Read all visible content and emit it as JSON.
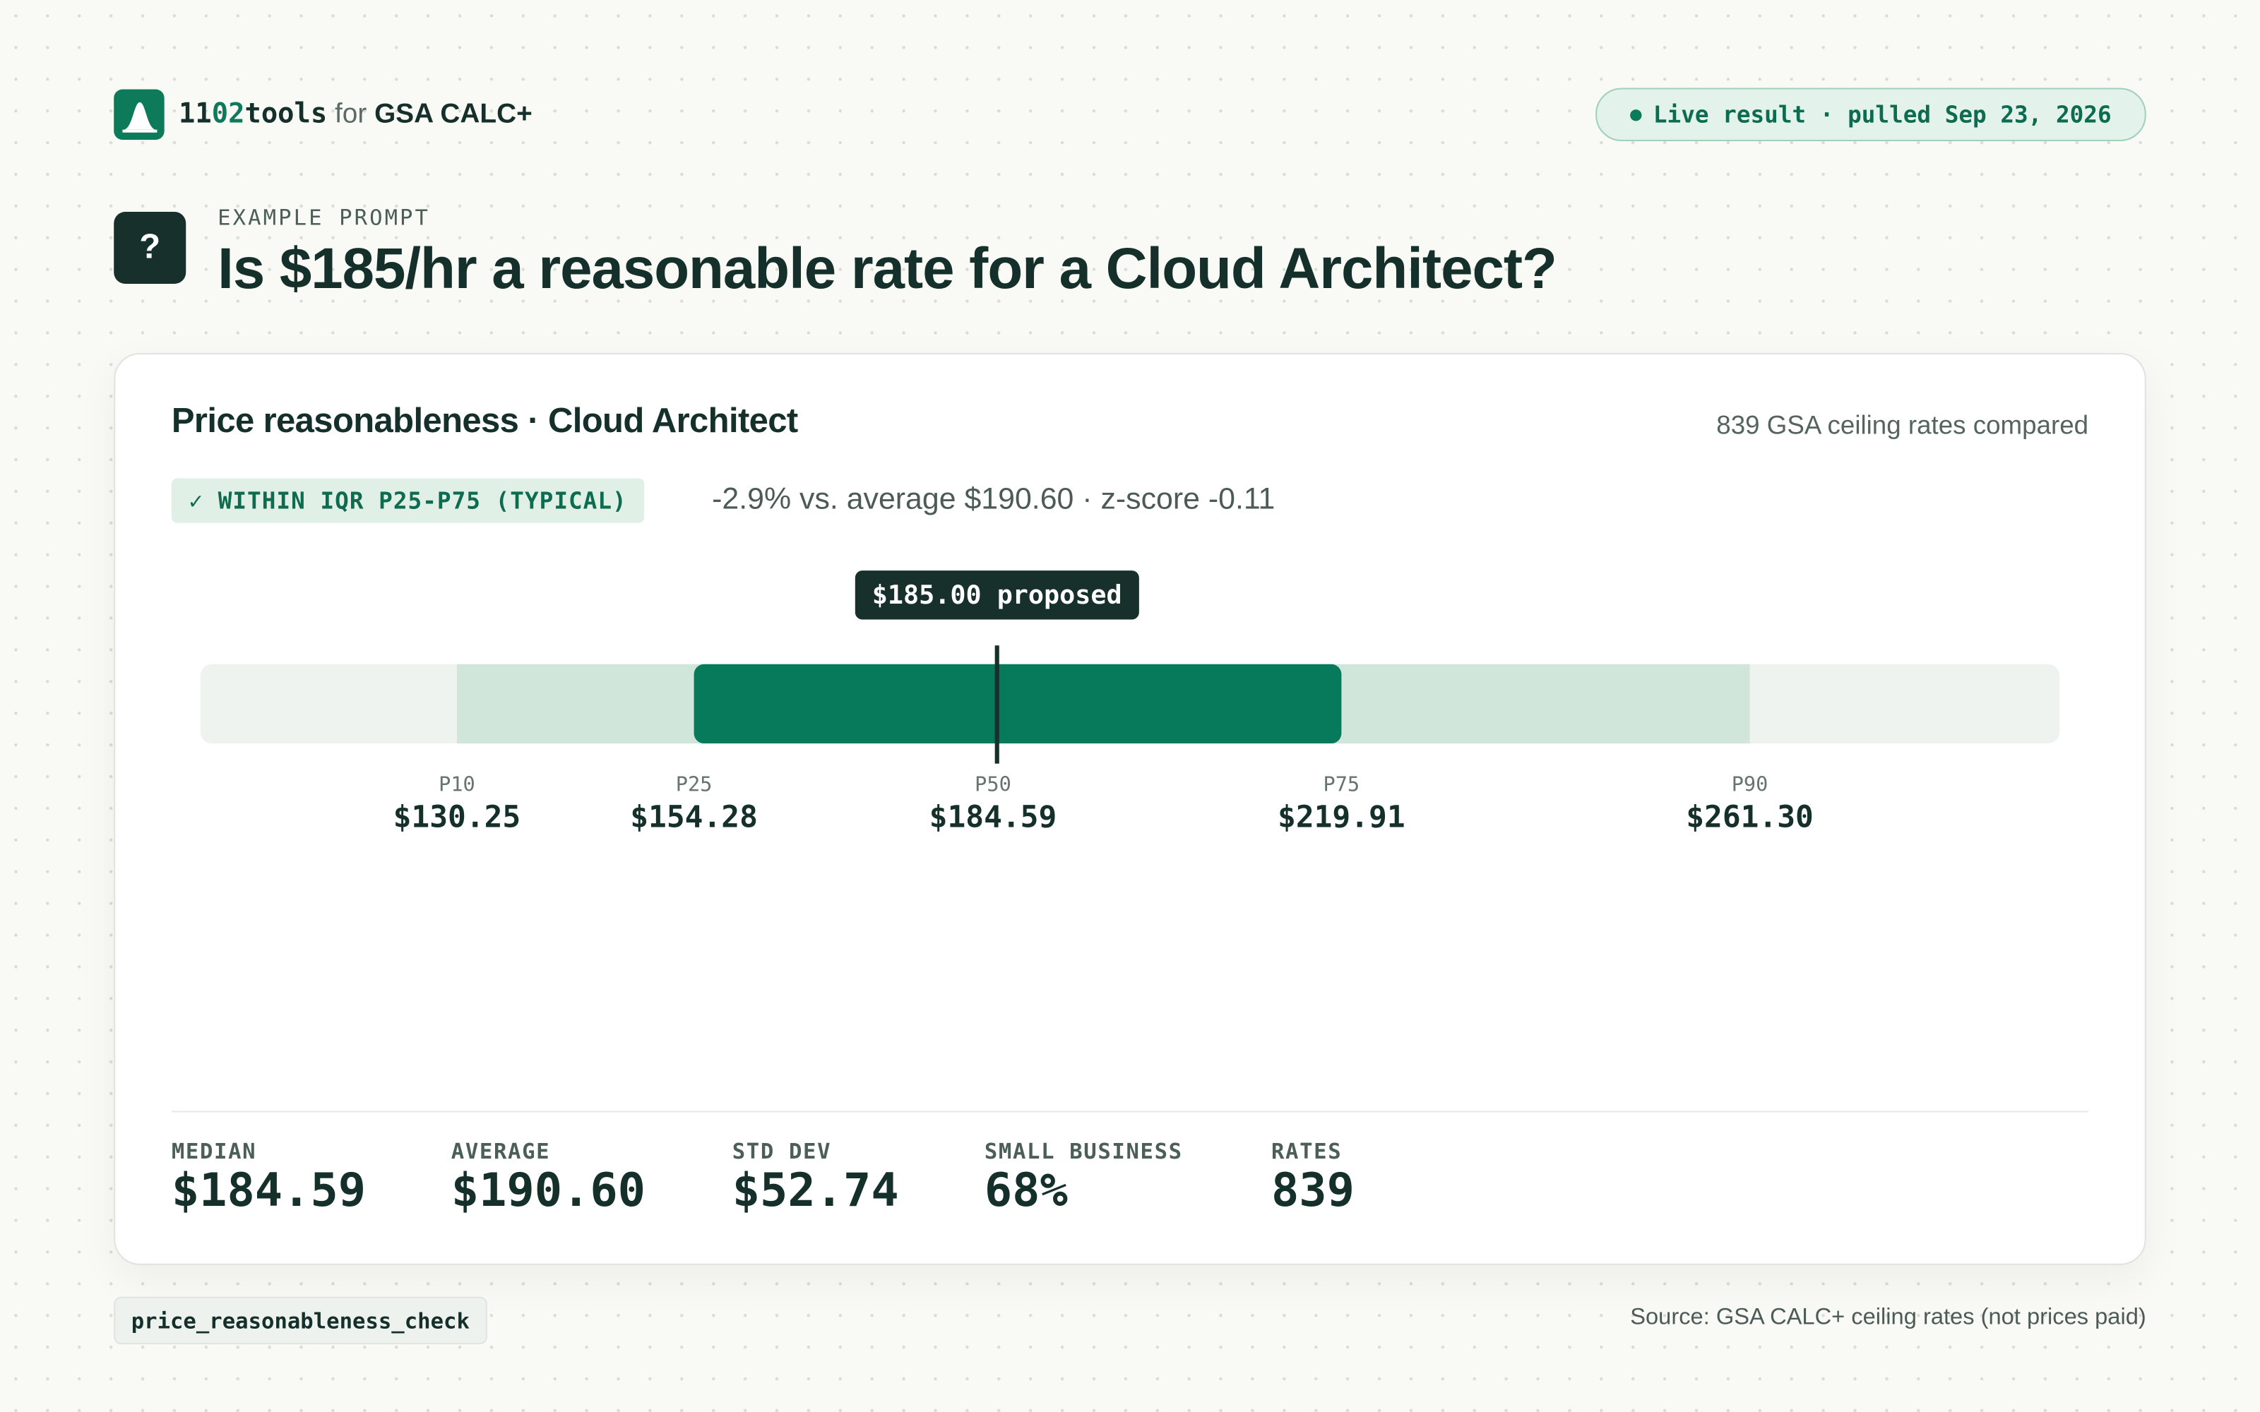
{
  "header": {
    "brand": [
      "11",
      "02",
      "tools"
    ],
    "connector": "for",
    "product": "GSA CALC+",
    "status": "Live result · pulled Sep 23, 2026"
  },
  "prompt": {
    "icon": "?",
    "eyebrow": "EXAMPLE PROMPT",
    "question": "Is $185/hr a reasonable rate for a Cloud Architect?"
  },
  "card": {
    "title": "Price reasonableness · Cloud Architect",
    "count": "839 GSA ceiling rates compared",
    "badge": "✓ WITHIN IQR P25-P75 (TYPICAL)",
    "summary": "-2.9% vs. average $190.60 · z-score -0.11",
    "proposed": {
      "value": 185,
      "label": "$185.00 proposed"
    },
    "percentiles": [
      {
        "name": "P10",
        "value": 130.25,
        "label": "$130.25"
      },
      {
        "name": "P25",
        "value": 154.28,
        "label": "$154.28"
      },
      {
        "name": "P50",
        "value": 184.59,
        "label": "$184.59"
      },
      {
        "name": "P75",
        "value": 219.91,
        "label": "$219.91"
      },
      {
        "name": "P90",
        "value": 261.3,
        "label": "$261.30"
      }
    ],
    "stats": [
      {
        "name": "MEDIAN",
        "value": "$184.59"
      },
      {
        "name": "AVERAGE",
        "value": "$190.60"
      },
      {
        "name": "STD DEV",
        "value": "$52.74"
      },
      {
        "name": "SMALL BUSINESS",
        "value": "68%"
      },
      {
        "name": "RATES",
        "value": "839"
      }
    ]
  },
  "footer": {
    "tool": "price_reasonableness_check",
    "source": "Source: GSA CALC+ ceiling rates (not prices paid)"
  }
}
